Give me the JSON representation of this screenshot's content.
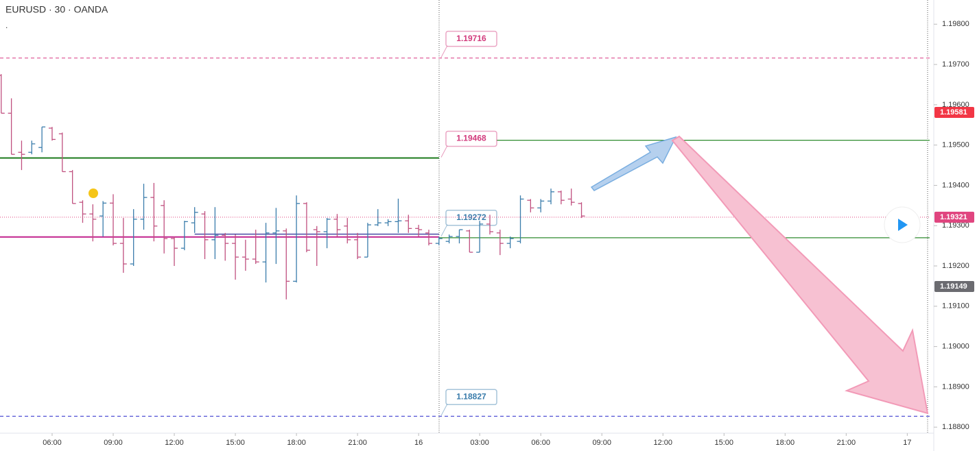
{
  "chart_data": {
    "type": "ohlc",
    "title": "EURUSD · 30 · OANDA",
    "subtitle": ".",
    "up_color": "#3a7cab",
    "down_color": "#c0507f",
    "x": [
      3.5,
      4,
      4.5,
      5,
      5.5,
      6,
      6.5,
      7,
      7.5,
      8,
      8.5,
      9,
      9.5,
      10,
      10.5,
      11,
      11.5,
      12,
      12.5,
      13,
      13.5,
      14,
      14.5,
      15,
      15.5,
      16,
      16.5,
      17,
      17.5,
      18,
      18.5,
      19,
      19.5,
      20,
      20.5,
      21,
      21.5,
      22,
      22.5,
      23,
      23.5,
      24,
      24.5,
      25,
      25.5,
      26,
      26.5,
      27,
      27.5,
      28,
      28.5,
      29,
      29.5,
      30,
      30.5,
      31,
      31.5,
      32
    ],
    "open": [
      1.19673,
      1.19579,
      1.19482,
      1.19482,
      1.19494,
      1.19542,
      1.19528,
      1.19434,
      1.19358,
      1.19329,
      1.19324,
      1.19356,
      1.19256,
      1.19205,
      1.19316,
      1.1937,
      1.1935,
      1.19268,
      1.19244,
      1.19307,
      1.19329,
      1.19265,
      1.19276,
      1.19256,
      1.19222,
      1.19217,
      1.1921,
      1.19282,
      1.19287,
      1.19162,
      1.19355,
      1.1929,
      1.19285,
      1.19316,
      1.19299,
      1.19265,
      1.19222,
      1.19302,
      1.19307,
      1.1931,
      1.19312,
      1.19293,
      1.19282,
      1.19256,
      1.19261,
      1.19273,
      1.19287,
      1.19234,
      1.19304,
      1.19282,
      1.19256,
      1.19261,
      1.19363,
      1.19344,
      1.19361,
      1.19384,
      1.19366,
      1.19355
    ],
    "high": [
      1.19676,
      1.19616,
      1.19511,
      1.19511,
      1.19545,
      1.19545,
      1.19531,
      1.19438,
      1.19363,
      1.19353,
      1.19361,
      1.19378,
      1.19319,
      1.19341,
      1.19404,
      1.19406,
      1.19363,
      1.19273,
      1.19312,
      1.19346,
      1.19336,
      1.19346,
      1.19282,
      1.19278,
      1.19265,
      1.1929,
      1.19307,
      1.19344,
      1.19293,
      1.19375,
      1.19358,
      1.19299,
      1.19319,
      1.19329,
      1.19319,
      1.19282,
      1.19307,
      1.19341,
      1.19316,
      1.19367,
      1.19327,
      1.19302,
      1.1929,
      1.19273,
      1.19278,
      1.1929,
      1.1929,
      1.19312,
      1.19327,
      1.1929,
      1.19273,
      1.19375,
      1.19366,
      1.19366,
      1.19392,
      1.19387,
      1.19392,
      1.19358
    ],
    "low": [
      1.19579,
      1.19477,
      1.19438,
      1.19477,
      1.19482,
      1.19511,
      1.19434,
      1.19355,
      1.19307,
      1.19261,
      1.19273,
      1.19251,
      1.19183,
      1.192,
      1.1929,
      1.19261,
      1.19231,
      1.192,
      1.19239,
      1.19282,
      1.19217,
      1.19217,
      1.19213,
      1.19166,
      1.19188,
      1.19205,
      1.19159,
      1.19205,
      1.19117,
      1.19159,
      1.19234,
      1.192,
      1.19244,
      1.19273,
      1.19256,
      1.19217,
      1.19222,
      1.19299,
      1.19299,
      1.19282,
      1.19282,
      1.19273,
      1.19251,
      1.19251,
      1.19256,
      1.19256,
      1.19234,
      1.19234,
      1.19278,
      1.19227,
      1.19244,
      1.19256,
      1.19333,
      1.19333,
      1.19353,
      1.19353,
      1.1935,
      1.19319
    ],
    "close": [
      1.19579,
      1.19477,
      1.19477,
      1.19503,
      1.19545,
      1.19514,
      1.19434,
      1.19355,
      1.19329,
      1.19316,
      1.19356,
      1.19256,
      1.19205,
      1.19316,
      1.1937,
      1.19299,
      1.19268,
      1.19244,
      1.1931,
      1.19333,
      1.19265,
      1.19276,
      1.19256,
      1.19222,
      1.19217,
      1.1921,
      1.19282,
      1.19287,
      1.19162,
      1.19355,
      1.19239,
      1.19285,
      1.19316,
      1.1929,
      1.19265,
      1.19222,
      1.19302,
      1.19307,
      1.1931,
      1.19312,
      1.19293,
      1.1929,
      1.19256,
      1.19268,
      1.19273,
      1.1929,
      1.19234,
      1.19304,
      1.19285,
      1.19256,
      1.19268,
      1.19366,
      1.19344,
      1.19361,
      1.19384,
      1.19363,
      1.19358,
      1.19324
    ],
    "xlim": [
      3.44,
      49.1
    ],
    "xticks": [
      {
        "value": 6,
        "label": "06:00"
      },
      {
        "value": 9,
        "label": "09:00"
      },
      {
        "value": 12,
        "label": "12:00"
      },
      {
        "value": 15,
        "label": "15:00"
      },
      {
        "value": 18,
        "label": "18:00"
      },
      {
        "value": 21,
        "label": "21:00"
      },
      {
        "value": 24,
        "label": "16"
      },
      {
        "value": 27,
        "label": "03:00"
      },
      {
        "value": 30,
        "label": "06:00"
      },
      {
        "value": 33,
        "label": "09:00"
      },
      {
        "value": 36,
        "label": "12:00"
      },
      {
        "value": 39,
        "label": "15:00"
      },
      {
        "value": 42,
        "label": "18:00"
      },
      {
        "value": 45,
        "label": "21:00"
      },
      {
        "value": 48,
        "label": "17"
      }
    ],
    "ylim": [
      1.18785,
      1.1986
    ],
    "yticks": [
      {
        "value": 1.188,
        "label": "1.18800"
      },
      {
        "value": 1.189,
        "label": "1.18900"
      },
      {
        "value": 1.19,
        "label": "1.19000"
      },
      {
        "value": 1.191,
        "label": "1.19100"
      },
      {
        "value": 1.192,
        "label": "1.19200"
      },
      {
        "value": 1.193,
        "label": "1.19300"
      },
      {
        "value": 1.194,
        "label": "1.19400"
      },
      {
        "value": 1.195,
        "label": "1.19500"
      },
      {
        "value": 1.196,
        "label": "1.19600"
      },
      {
        "value": 1.197,
        "label": "1.19700"
      },
      {
        "value": 1.198,
        "label": "1.19800"
      }
    ],
    "levels": [
      {
        "value": 1.19716,
        "color": "#e0609a",
        "text_color": "#d23a7c",
        "dashed": true,
        "xrange": [
          3.44,
          49.1
        ]
      },
      {
        "value": 1.19468,
        "color": "#1b7a1b",
        "text_color": "#d23a7c",
        "dashed": false,
        "xrange": [
          3.44,
          25.0
        ]
      },
      {
        "value": 1.19272,
        "color": "#c2228e",
        "text_color": "#3a7cab",
        "dashed": false,
        "xrange": [
          3.44,
          25.0
        ]
      },
      {
        "value": 1.18827,
        "color": "#3f3fd0",
        "text_color": "#3a7cab",
        "dashed": true,
        "xrange": [
          3.44,
          49.1
        ]
      }
    ],
    "lines": [
      {
        "value": 1.19512,
        "color": "#2e8b2e",
        "xrange": [
          27.84,
          49.1
        ]
      },
      {
        "value": 1.1927,
        "color": "#2e8b2e",
        "xrange": [
          25.0,
          49.1
        ]
      },
      {
        "value": 1.19279,
        "color": "#1a1a8c",
        "xrange": [
          13.0,
          25.0
        ]
      }
    ],
    "price_tags": [
      {
        "value": 1.19581,
        "color": "#f23645"
      },
      {
        "value": 1.19321,
        "color": "#e0457f"
      },
      {
        "value": 1.19149,
        "color": "#6b6b70"
      }
    ]
  }
}
